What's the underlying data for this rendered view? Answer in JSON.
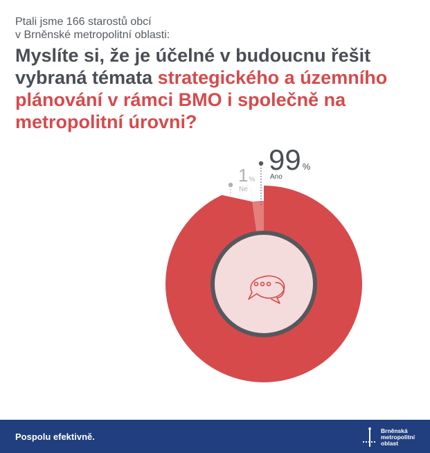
{
  "intro": {
    "line1": "Ptali jsme 166 starostů obcí",
    "line2": "v Brněnské metropolitní oblasti:"
  },
  "question": {
    "part1": "Myslíte si, že je účelné v budoucnu řešit vybraná témata ",
    "part2": "strategického a územního plánování v rámci BMO i společně na metropolitní úrovni?"
  },
  "chart_data": {
    "type": "pie",
    "title": "",
    "unit": "%",
    "slices": [
      {
        "label": "Ano",
        "value": 99,
        "value_text": "99",
        "color": "#d64a4c"
      },
      {
        "label": "Ne",
        "value": 1,
        "value_text": "1",
        "color": "#e57f7c"
      }
    ]
  },
  "center_icon": "chat-bubbles-icon",
  "footer": {
    "slogan": "Pospolu efektivně.",
    "logo_lines": [
      "Brněnská",
      "metropolitní",
      "oblast"
    ]
  },
  "colors": {
    "accent": "#d64a4c",
    "minor": "#e57f7c",
    "center_fill": "#f5dcdc",
    "ring": "#55585c",
    "footer_bg": "#213f7e"
  }
}
